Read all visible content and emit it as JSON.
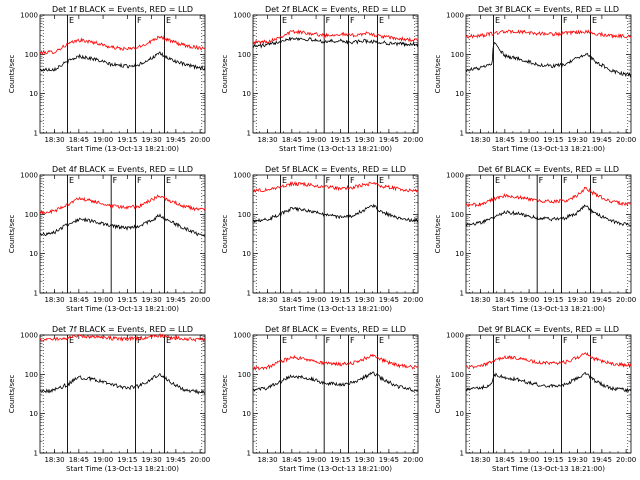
{
  "chart_data": [
    {
      "type": "line",
      "title": "Det 1f BLACK = Events, RED = LLD",
      "xlabel": "Start Time (13-Oct-13 18:21:00)",
      "ylabel": "Counts/sec",
      "yscale": "log",
      "ylim": [
        1,
        1000
      ],
      "ytick_labels": [
        "1",
        "10",
        "100",
        "1000"
      ],
      "xtick_labels": [
        "18:30",
        "18:45",
        "19:00",
        "19:15",
        "19:30",
        "19:45",
        "20:00"
      ],
      "markers": [
        "E",
        "F",
        "E"
      ],
      "series": [
        {
          "color": "#ff0000",
          "x": [
            "18:21",
            "18:30",
            "18:38",
            "18:45",
            "18:55",
            "19:05",
            "19:15",
            "19:22",
            "19:30",
            "19:35",
            "19:40",
            "19:50",
            "20:00"
          ],
          "y": [
            110,
            115,
            180,
            230,
            200,
            150,
            135,
            150,
            220,
            290,
            230,
            170,
            145
          ]
        },
        {
          "color": "#000000",
          "x": [
            "18:21",
            "18:30",
            "18:38",
            "18:45",
            "18:55",
            "19:05",
            "19:15",
            "19:22",
            "19:30",
            "19:35",
            "19:40",
            "19:50",
            "20:00"
          ],
          "y": [
            40,
            42,
            65,
            90,
            75,
            55,
            50,
            55,
            80,
            105,
            80,
            55,
            45
          ]
        }
      ]
    },
    {
      "type": "line",
      "title": "Det 2f BLACK = Events, RED = LLD",
      "xlabel": "Start Time (13-Oct-13 18:21:00)",
      "ylabel": "Counts/sec",
      "yscale": "log",
      "ylim": [
        1,
        1000
      ],
      "ytick_labels": [
        "1",
        "10",
        "100",
        "1000"
      ],
      "xtick_labels": [
        "18:30",
        "18:45",
        "19:00",
        "19:15",
        "19:30",
        "19:45",
        "20:00"
      ],
      "markers": [
        "E",
        "F",
        "F",
        "E"
      ],
      "series": [
        {
          "color": "#ff0000",
          "x": [
            "18:21",
            "18:30",
            "18:38",
            "18:45",
            "18:55",
            "19:05",
            "19:15",
            "19:22",
            "19:30",
            "19:35",
            "19:40",
            "19:50",
            "20:00"
          ],
          "y": [
            200,
            210,
            280,
            380,
            350,
            300,
            330,
            300,
            340,
            320,
            290,
            250,
            230
          ]
        },
        {
          "color": "#000000",
          "x": [
            "18:21",
            "18:30",
            "18:38",
            "18:45",
            "18:55",
            "19:05",
            "19:15",
            "19:22",
            "19:30",
            "19:35",
            "19:40",
            "19:50",
            "20:00"
          ],
          "y": [
            160,
            170,
            220,
            260,
            240,
            210,
            220,
            200,
            220,
            210,
            200,
            185,
            180
          ]
        }
      ]
    },
    {
      "type": "line",
      "title": "Det 3f BLACK = Events, RED = LLD",
      "xlabel": "Start Time (13-Oct-13 18:21:00)",
      "ylabel": "Counts/sec",
      "yscale": "log",
      "ylim": [
        1,
        1000
      ],
      "ytick_labels": [
        "1",
        "10",
        "100",
        "1000"
      ],
      "xtick_labels": [
        "18:30",
        "18:45",
        "19:00",
        "19:15",
        "19:30",
        "19:45",
        "20:00"
      ],
      "markers": [
        "E",
        "F",
        "E"
      ],
      "series": [
        {
          "color": "#ff0000",
          "x": [
            "18:21",
            "18:30",
            "18:38",
            "18:45",
            "18:55",
            "19:05",
            "19:15",
            "19:22",
            "19:30",
            "19:35",
            "19:40",
            "19:50",
            "20:00"
          ],
          "y": [
            280,
            300,
            340,
            380,
            370,
            340,
            330,
            340,
            360,
            380,
            340,
            300,
            290
          ]
        },
        {
          "color": "#000000",
          "x": [
            "18:21",
            "18:30",
            "18:37",
            "18:38",
            "18:45",
            "18:55",
            "19:05",
            "19:15",
            "19:22",
            "19:30",
            "19:35",
            "19:40",
            "19:50",
            "20:00"
          ],
          "y": [
            40,
            45,
            55,
            200,
            90,
            75,
            55,
            50,
            55,
            80,
            105,
            70,
            40,
            30
          ]
        }
      ]
    },
    {
      "type": "line",
      "title": "Det 4f BLACK = Events, RED = LLD",
      "xlabel": "Start Time (13-Oct-13 18:21:00)",
      "ylabel": "Counts/sec",
      "yscale": "log",
      "ylim": [
        1,
        1000
      ],
      "ytick_labels": [
        "1",
        "10",
        "100",
        "1000"
      ],
      "xtick_labels": [
        "18:30",
        "18:45",
        "19:00",
        "19:15",
        "19:30",
        "19:45",
        "20:00"
      ],
      "markers": [
        "E",
        "F",
        "F",
        "E"
      ],
      "series": [
        {
          "color": "#ff0000",
          "x": [
            "18:21",
            "18:30",
            "18:38",
            "18:45",
            "18:55",
            "19:05",
            "19:15",
            "19:22",
            "19:30",
            "19:35",
            "19:40",
            "19:50",
            "20:00"
          ],
          "y": [
            110,
            120,
            180,
            250,
            210,
            160,
            150,
            160,
            230,
            300,
            230,
            160,
            130
          ]
        },
        {
          "color": "#000000",
          "x": [
            "18:21",
            "18:30",
            "18:38",
            "18:45",
            "18:55",
            "19:05",
            "19:15",
            "19:22",
            "19:30",
            "19:35",
            "19:40",
            "19:50",
            "20:00"
          ],
          "y": [
            30,
            35,
            55,
            75,
            65,
            50,
            45,
            50,
            70,
            95,
            70,
            45,
            30
          ]
        }
      ]
    },
    {
      "type": "line",
      "title": "Det 5f BLACK = Events, RED = LLD",
      "xlabel": "Start Time (13-Oct-13 18:21:00)",
      "ylabel": "Counts/sec",
      "yscale": "log",
      "ylim": [
        1,
        1000
      ],
      "ytick_labels": [
        "1",
        "10",
        "100",
        "1000"
      ],
      "xtick_labels": [
        "18:30",
        "18:45",
        "19:00",
        "19:15",
        "19:30",
        "19:45",
        "20:00"
      ],
      "markers": [
        "E",
        "F",
        "F",
        "E"
      ],
      "series": [
        {
          "color": "#ff0000",
          "x": [
            "18:21",
            "18:30",
            "18:38",
            "18:45",
            "18:55",
            "19:05",
            "19:15",
            "19:22",
            "19:30",
            "19:35",
            "19:40",
            "19:50",
            "20:00"
          ],
          "y": [
            400,
            420,
            500,
            600,
            560,
            500,
            460,
            480,
            560,
            620,
            520,
            450,
            400
          ]
        },
        {
          "color": "#000000",
          "x": [
            "18:21",
            "18:30",
            "18:38",
            "18:45",
            "18:55",
            "19:05",
            "19:15",
            "19:22",
            "19:30",
            "19:35",
            "19:40",
            "19:50",
            "20:00"
          ],
          "y": [
            70,
            75,
            100,
            140,
            125,
            100,
            85,
            90,
            130,
            170,
            120,
            80,
            70
          ]
        }
      ]
    },
    {
      "type": "line",
      "title": "Det 6f BLACK = Events, RED = LLD",
      "xlabel": "Start Time (13-Oct-13 18:21:00)",
      "ylabel": "Counts/sec",
      "yscale": "log",
      "ylim": [
        1,
        1000
      ],
      "ytick_labels": [
        "1",
        "10",
        "100",
        "1000"
      ],
      "xtick_labels": [
        "18:30",
        "18:45",
        "19:00",
        "19:15",
        "19:30",
        "19:45",
        "20:00"
      ],
      "markers": [
        "E",
        "F",
        "F",
        "E"
      ],
      "series": [
        {
          "color": "#ff0000",
          "x": [
            "18:21",
            "18:30",
            "18:38",
            "18:45",
            "18:55",
            "19:05",
            "19:15",
            "19:22",
            "19:30",
            "19:35",
            "19:40",
            "19:50",
            "20:00"
          ],
          "y": [
            170,
            180,
            240,
            300,
            270,
            220,
            210,
            220,
            300,
            480,
            340,
            220,
            180
          ]
        },
        {
          "color": "#000000",
          "x": [
            "18:21",
            "18:30",
            "18:38",
            "18:45",
            "18:55",
            "19:05",
            "19:15",
            "19:22",
            "19:30",
            "19:35",
            "19:40",
            "19:50",
            "20:00"
          ],
          "y": [
            55,
            60,
            85,
            115,
            100,
            80,
            75,
            80,
            110,
            170,
            110,
            70,
            55
          ]
        }
      ]
    },
    {
      "type": "line",
      "title": "Det 7f BLACK = Events, RED = LLD",
      "xlabel": "Start Time (13-Oct-13 18:21:00)",
      "ylabel": "Counts/sec",
      "yscale": "log",
      "ylim": [
        1,
        1000
      ],
      "ytick_labels": [
        "1",
        "10",
        "100",
        "1000"
      ],
      "xtick_labels": [
        "18:30",
        "18:45",
        "19:00",
        "19:15",
        "19:30",
        "19:45",
        "20:00"
      ],
      "markers": [
        "E",
        "F",
        "E"
      ],
      "series": [
        {
          "color": "#ff0000",
          "x": [
            "18:21",
            "18:30",
            "18:38",
            "18:45",
            "18:55",
            "19:05",
            "19:15",
            "19:22",
            "19:30",
            "19:35",
            "19:40",
            "19:50",
            "20:00"
          ],
          "y": [
            750,
            780,
            850,
            950,
            900,
            820,
            800,
            830,
            900,
            980,
            880,
            800,
            760
          ]
        },
        {
          "color": "#000000",
          "x": [
            "18:21",
            "18:30",
            "18:38",
            "18:45",
            "18:55",
            "19:05",
            "19:15",
            "19:22",
            "19:30",
            "19:35",
            "19:40",
            "19:50",
            "20:00"
          ],
          "y": [
            35,
            40,
            55,
            85,
            75,
            55,
            45,
            50,
            75,
            105,
            70,
            40,
            35
          ]
        }
      ]
    },
    {
      "type": "line",
      "title": "Det 8f BLACK = Events, RED = LLD",
      "xlabel": "Start Time (13-Oct-13 18:21:00)",
      "ylabel": "Counts/sec",
      "yscale": "log",
      "ylim": [
        1,
        1000
      ],
      "ytick_labels": [
        "1",
        "10",
        "100",
        "1000"
      ],
      "xtick_labels": [
        "18:30",
        "18:45",
        "19:00",
        "19:15",
        "19:30",
        "19:45",
        "20:00"
      ],
      "markers": [
        "E",
        "F",
        "F",
        "E"
      ],
      "series": [
        {
          "color": "#ff0000",
          "x": [
            "18:21",
            "18:30",
            "18:38",
            "18:45",
            "18:55",
            "19:05",
            "19:15",
            "19:22",
            "19:30",
            "19:35",
            "19:40",
            "19:50",
            "20:00"
          ],
          "y": [
            140,
            150,
            210,
            270,
            240,
            190,
            180,
            190,
            250,
            310,
            240,
            170,
            150
          ]
        },
        {
          "color": "#000000",
          "x": [
            "18:21",
            "18:30",
            "18:38",
            "18:45",
            "18:55",
            "19:05",
            "19:15",
            "19:22",
            "19:30",
            "19:35",
            "19:40",
            "19:50",
            "20:00"
          ],
          "y": [
            40,
            45,
            65,
            90,
            80,
            60,
            55,
            60,
            85,
            110,
            80,
            50,
            40
          ]
        }
      ]
    },
    {
      "type": "line",
      "title": "Det 9f BLACK = Events, RED = LLD",
      "xlabel": "Start Time (13-Oct-13 18:21:00)",
      "ylabel": "Counts/sec",
      "yscale": "log",
      "ylim": [
        1,
        1000
      ],
      "ytick_labels": [
        "1",
        "10",
        "100",
        "1000"
      ],
      "xtick_labels": [
        "18:30",
        "18:45",
        "19:00",
        "19:15",
        "19:30",
        "19:45",
        "20:00"
      ],
      "markers": [
        "E",
        "F",
        "E"
      ],
      "series": [
        {
          "color": "#ff0000",
          "x": [
            "18:21",
            "18:30",
            "18:38",
            "18:45",
            "18:55",
            "19:05",
            "19:15",
            "19:22",
            "19:30",
            "19:35",
            "19:40",
            "19:50",
            "20:00"
          ],
          "y": [
            150,
            160,
            220,
            280,
            250,
            200,
            190,
            200,
            270,
            340,
            250,
            190,
            170
          ]
        },
        {
          "color": "#000000",
          "x": [
            "18:21",
            "18:30",
            "18:37",
            "18:38",
            "18:45",
            "18:55",
            "19:05",
            "19:15",
            "19:22",
            "19:30",
            "19:35",
            "19:40",
            "19:50",
            "20:00"
          ],
          "y": [
            40,
            45,
            55,
            100,
            85,
            70,
            55,
            50,
            55,
            80,
            110,
            70,
            45,
            40
          ]
        }
      ]
    }
  ]
}
